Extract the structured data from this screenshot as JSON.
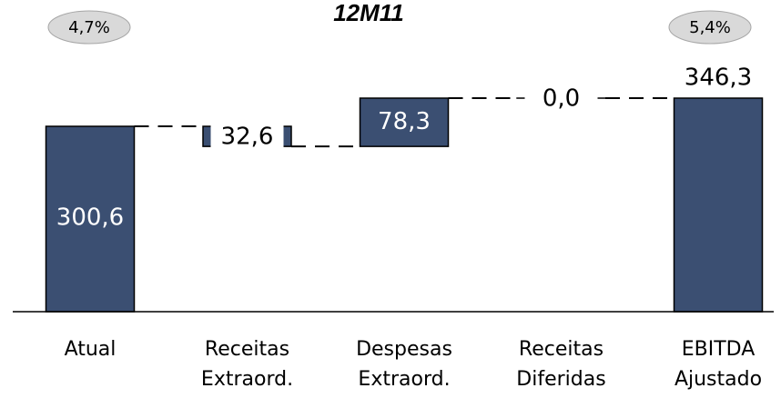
{
  "chart_data": {
    "type": "waterfall",
    "title": "12M11",
    "annotations": [
      "4,7%",
      "5,4%"
    ],
    "categories": [
      "Atual",
      "Receitas Extraord.",
      "Despesas Extraord.",
      "Receitas Diferidas",
      "EBITDA Ajustado"
    ],
    "values": [
      300.6,
      -32.6,
      78.3,
      0.0,
      346.3
    ],
    "value_labels": [
      "300,6",
      "32,6",
      "78,3",
      "0,0",
      "346,3"
    ],
    "color": "#3b4f72"
  }
}
